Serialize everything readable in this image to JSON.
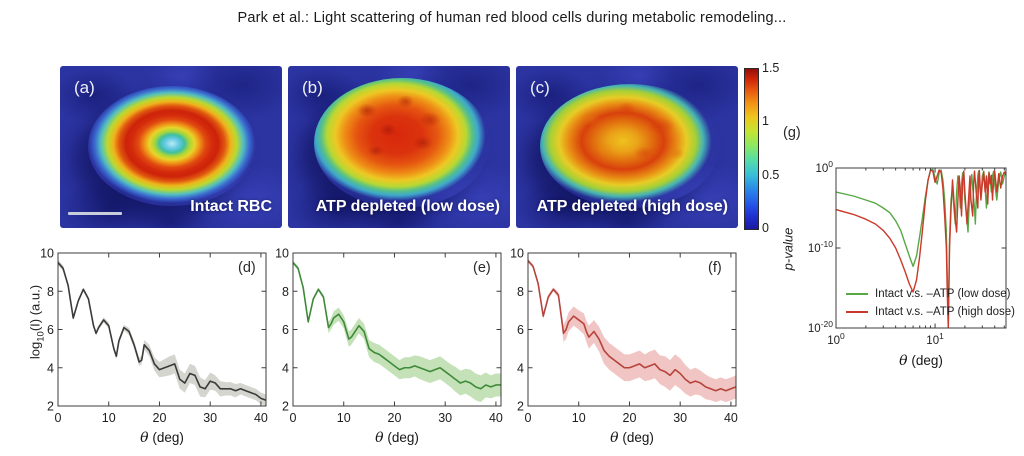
{
  "header": {
    "title": "Park et al.: Light scattering of human red blood cells during metabolic remodeling..."
  },
  "surface_panels": [
    {
      "label": "(a)",
      "caption": "Intact RBC"
    },
    {
      "label": "(b)",
      "caption": "ATP depleted (low dose)"
    },
    {
      "label": "(c)",
      "caption": "ATP depleted (high dose)"
    }
  ],
  "colorbar": {
    "range": [
      0,
      1.5
    ],
    "tick_labels": [
      "1.5",
      "1",
      "0.5",
      "0"
    ],
    "colormap": "jet"
  },
  "chart_data": [
    {
      "id": "d",
      "type": "line",
      "panel_label": "(d)",
      "xlabel_symbol": "θ",
      "xlabel_units": " (deg)",
      "ylabel": "log10(I) (a.u.)",
      "ylabel_parts": [
        "log",
        "10",
        "(I) (a.u.)"
      ],
      "xlim": [
        0,
        41
      ],
      "ylim": [
        2,
        10
      ],
      "xticks": [
        0,
        10,
        20,
        30,
        40
      ],
      "yticks": [
        2,
        4,
        6,
        8,
        10
      ],
      "line_color": "#3a3a38",
      "band_color": "rgba(172,171,162,0.5)",
      "x": [
        0,
        1,
        2,
        3,
        4,
        5,
        6,
        7,
        7.5,
        8,
        9,
        10,
        11,
        11.5,
        12,
        13,
        14,
        15,
        16,
        16.5,
        17,
        18,
        19,
        20,
        21,
        22,
        23,
        24,
        25,
        26,
        27,
        28,
        29,
        30,
        31,
        32,
        33,
        34,
        35,
        36,
        37,
        38,
        39,
        40,
        41
      ],
      "y": [
        9.5,
        9.2,
        8.3,
        6.6,
        7.5,
        8.1,
        7.6,
        6.2,
        5.8,
        6.1,
        6.5,
        6.2,
        5.0,
        4.6,
        5.4,
        6.1,
        5.9,
        5.2,
        4.3,
        4.4,
        5.2,
        4.9,
        4.2,
        3.9,
        4.0,
        4.1,
        4.2,
        3.4,
        3.2,
        3.7,
        3.6,
        3.0,
        2.9,
        3.3,
        3.2,
        2.9,
        2.9,
        2.9,
        2.8,
        2.9,
        2.8,
        2.7,
        2.6,
        2.4,
        2.3
      ],
      "band": [
        0.15,
        0.15,
        0.12,
        0.12,
        0.1,
        0.1,
        0.1,
        0.12,
        0.12,
        0.12,
        0.15,
        0.15,
        0.15,
        0.15,
        0.15,
        0.15,
        0.18,
        0.2,
        0.22,
        0.22,
        0.25,
        0.3,
        0.35,
        0.4,
        0.45,
        0.5,
        0.5,
        0.5,
        0.5,
        0.5,
        0.5,
        0.5,
        0.45,
        0.45,
        0.4,
        0.4,
        0.35,
        0.35,
        0.35,
        0.3,
        0.3,
        0.3,
        0.3,
        0.3,
        0.3
      ]
    },
    {
      "id": "e",
      "type": "line",
      "panel_label": "(e)",
      "xlabel_symbol": "θ",
      "xlabel_units": " (deg)",
      "ylabel": null,
      "xlim": [
        0,
        41
      ],
      "ylim": [
        2,
        10
      ],
      "xticks": [
        0,
        10,
        20,
        30,
        40
      ],
      "yticks": [
        2,
        4,
        6,
        8,
        10
      ],
      "line_color": "#3f8a3a",
      "band_color": "rgba(150,200,125,0.55)",
      "x": [
        0,
        1,
        2,
        3,
        4,
        5,
        6,
        7,
        7.5,
        8,
        9,
        10,
        11,
        11.5,
        12,
        13,
        14,
        15,
        16,
        16.5,
        17,
        18,
        19,
        20,
        21,
        22,
        23,
        24,
        25,
        26,
        27,
        28,
        29,
        30,
        31,
        32,
        33,
        34,
        35,
        36,
        37,
        38,
        39,
        40,
        41
      ],
      "y": [
        9.5,
        9.2,
        8.2,
        6.4,
        7.6,
        8.1,
        7.7,
        6.1,
        6.3,
        6.6,
        6.8,
        6.4,
        5.5,
        5.6,
        5.8,
        6.2,
        5.9,
        5.0,
        4.8,
        4.75,
        4.7,
        4.5,
        4.3,
        4.1,
        3.9,
        4.0,
        4.0,
        4.1,
        4.0,
        3.9,
        3.8,
        3.9,
        4.0,
        3.8,
        3.6,
        3.4,
        3.2,
        3.3,
        3.2,
        3.0,
        2.9,
        3.1,
        3.0,
        3.1,
        3.1
      ],
      "band": [
        0.1,
        0.1,
        0.1,
        0.12,
        0.1,
        0.1,
        0.12,
        0.3,
        0.3,
        0.35,
        0.35,
        0.35,
        0.4,
        0.4,
        0.4,
        0.4,
        0.4,
        0.45,
        0.5,
        0.5,
        0.5,
        0.5,
        0.5,
        0.5,
        0.5,
        0.55,
        0.55,
        0.55,
        0.6,
        0.6,
        0.6,
        0.6,
        0.6,
        0.6,
        0.6,
        0.65,
        0.65,
        0.65,
        0.7,
        0.7,
        0.7,
        0.65,
        0.6,
        0.6,
        0.6
      ]
    },
    {
      "id": "f",
      "type": "line",
      "panel_label": "(f)",
      "xlabel_symbol": "θ",
      "xlabel_units": " (deg)",
      "ylabel": null,
      "xlim": [
        0,
        41
      ],
      "ylim": [
        2,
        10
      ],
      "xticks": [
        0,
        10,
        20,
        30,
        40
      ],
      "yticks": [
        2,
        4,
        6,
        8,
        10
      ],
      "line_color": "#b5443c",
      "band_color": "rgba(230,150,145,0.55)",
      "x": [
        0,
        1,
        2,
        3,
        4,
        5,
        6,
        7,
        7.5,
        8,
        9,
        10,
        11,
        11.5,
        12,
        13,
        14,
        15,
        16,
        16.5,
        17,
        18,
        19,
        20,
        21,
        22,
        23,
        24,
        25,
        26,
        27,
        28,
        29,
        30,
        31,
        32,
        33,
        34,
        35,
        36,
        37,
        38,
        39,
        40,
        41
      ],
      "y": [
        9.6,
        9.3,
        8.4,
        6.7,
        7.7,
        8.1,
        7.8,
        5.8,
        6.0,
        6.4,
        6.7,
        6.5,
        6.3,
        5.9,
        5.6,
        5.9,
        5.5,
        4.9,
        4.6,
        4.5,
        4.4,
        4.2,
        4.0,
        4.0,
        4.1,
        4.2,
        4.0,
        4.1,
        4.2,
        3.9,
        3.8,
        3.6,
        3.9,
        3.7,
        3.4,
        3.2,
        3.3,
        3.2,
        3.0,
        2.9,
        2.8,
        2.9,
        2.8,
        2.9,
        3.0
      ],
      "band": [
        0.1,
        0.1,
        0.1,
        0.15,
        0.12,
        0.1,
        0.15,
        0.45,
        0.5,
        0.5,
        0.5,
        0.5,
        0.55,
        0.55,
        0.6,
        0.6,
        0.65,
        0.7,
        0.7,
        0.7,
        0.7,
        0.7,
        0.7,
        0.7,
        0.7,
        0.7,
        0.7,
        0.75,
        0.75,
        0.75,
        0.8,
        0.8,
        0.8,
        0.8,
        0.75,
        0.7,
        0.7,
        0.65,
        0.65,
        0.6,
        0.6,
        0.6,
        0.6,
        0.6,
        0.6
      ]
    },
    {
      "id": "g",
      "type": "line",
      "xscale": "log",
      "yscale": "log",
      "panel_label": "(g)",
      "xlabel_symbol": "θ",
      "xlabel_units": " (deg)",
      "ylabel": "p-value",
      "xlim_log": [
        1,
        52
      ],
      "ylim_exp": [
        -20,
        0
      ],
      "xticks_log": [
        1,
        10
      ],
      "xminor_log": [
        2,
        3,
        4,
        5,
        6,
        7,
        8,
        9,
        20,
        30,
        40,
        50
      ],
      "yticks_exp": [
        0,
        -10,
        -20
      ],
      "legend_position": "bottom-left",
      "series": [
        {
          "name": "Intact v.s. –ATP (low dose)",
          "color": "#58a845",
          "points": [
            [
              1,
              -3
            ],
            [
              1.5,
              -3.5
            ],
            [
              2,
              -4
            ],
            [
              2.5,
              -4.4
            ],
            [
              3,
              -5
            ],
            [
              3.5,
              -5.6
            ],
            [
              4,
              -6.6
            ],
            [
              4.5,
              -7.8
            ],
            [
              5,
              -9.5
            ],
            [
              5.5,
              -11
            ],
            [
              6,
              -12.3
            ],
            [
              6.5,
              -11
            ],
            [
              7,
              -8.5
            ],
            [
              7.5,
              -6
            ],
            [
              8,
              -3.5
            ],
            [
              8.5,
              -1.5
            ],
            [
              9,
              -0.3
            ],
            [
              9.5,
              -0.15
            ],
            [
              10,
              -1.2
            ],
            [
              10.5,
              -2
            ],
            [
              11,
              -0.6
            ],
            [
              11.5,
              -0.25
            ],
            [
              12,
              -1.5
            ],
            [
              12.5,
              -4
            ],
            [
              13,
              -8
            ],
            [
              13.3,
              -14
            ],
            [
              13.6,
              -19.5
            ],
            [
              14,
              -9
            ],
            [
              14.5,
              -4
            ],
            [
              15,
              -2.5
            ],
            [
              15.5,
              -5
            ],
            [
              16,
              -7
            ],
            [
              16.5,
              -3
            ],
            [
              17,
              -1
            ],
            [
              17.5,
              -2.5
            ],
            [
              18,
              -5
            ],
            [
              18.5,
              -2
            ],
            [
              19,
              -0.6
            ],
            [
              19.5,
              -1.5
            ],
            [
              20,
              -4
            ],
            [
              21,
              -6.5
            ],
            [
              21.5,
              -8
            ],
            [
              22,
              -5
            ],
            [
              23,
              -2
            ],
            [
              23.5,
              -0.8
            ],
            [
              24,
              -2.5
            ],
            [
              25,
              -5
            ],
            [
              25.5,
              -7
            ],
            [
              26,
              -4
            ],
            [
              27,
              -1
            ],
            [
              27.5,
              -0.4
            ],
            [
              28,
              -2
            ],
            [
              29,
              -3.5
            ],
            [
              30,
              -1
            ],
            [
              31,
              -0.4
            ],
            [
              32,
              -2.5
            ],
            [
              33,
              -5
            ],
            [
              34,
              -2
            ],
            [
              35,
              -0.5
            ],
            [
              36,
              -1.5
            ],
            [
              37,
              -3
            ],
            [
              38,
              -1
            ],
            [
              39,
              -0.4
            ],
            [
              40,
              -2
            ],
            [
              42,
              -4
            ],
            [
              44,
              -1.5
            ],
            [
              46,
              -0.5
            ],
            [
              48,
              -2
            ],
            [
              50,
              -1
            ],
            [
              52,
              -0.4
            ]
          ]
        },
        {
          "name": "Intact v.s. –ATP (high dose)",
          "color": "#c93a2b",
          "points": [
            [
              1,
              -5.2
            ],
            [
              1.5,
              -5.8
            ],
            [
              2,
              -6.4
            ],
            [
              2.5,
              -7
            ],
            [
              3,
              -7.8
            ],
            [
              3.5,
              -8.8
            ],
            [
              4,
              -10
            ],
            [
              4.5,
              -11.5
            ],
            [
              5,
              -13
            ],
            [
              5.5,
              -14.5
            ],
            [
              6,
              -15.5
            ],
            [
              6.5,
              -14
            ],
            [
              7,
              -11
            ],
            [
              7.5,
              -7.5
            ],
            [
              8,
              -4
            ],
            [
              8.5,
              -1.5
            ],
            [
              9,
              -0.25
            ],
            [
              9.5,
              -0.4
            ],
            [
              10,
              -1.8
            ],
            [
              10.5,
              -1
            ],
            [
              11,
              -0.25
            ],
            [
              11.5,
              -0.5
            ],
            [
              12,
              -2.5
            ],
            [
              12.5,
              -6
            ],
            [
              13,
              -10
            ],
            [
              13.3,
              -16
            ],
            [
              13.6,
              -20
            ],
            [
              14,
              -10
            ],
            [
              14.5,
              -5
            ],
            [
              15,
              -1.5
            ],
            [
              15.5,
              -4
            ],
            [
              16,
              -6.5
            ],
            [
              16.5,
              -8
            ],
            [
              17,
              -4
            ],
            [
              17.5,
              -1
            ],
            [
              18,
              -3
            ],
            [
              18.5,
              -6
            ],
            [
              19,
              -1.5
            ],
            [
              19.5,
              -0.4
            ],
            [
              20,
              -3
            ],
            [
              21,
              -7
            ],
            [
              22,
              -3
            ],
            [
              22.5,
              -1
            ],
            [
              23,
              -4
            ],
            [
              24,
              -6
            ],
            [
              24.5,
              -2
            ],
            [
              25,
              -0.4
            ],
            [
              26,
              -3
            ],
            [
              27,
              -5
            ],
            [
              27.5,
              -1.5
            ],
            [
              28,
              -0.3
            ],
            [
              29,
              -4
            ],
            [
              30,
              -2
            ],
            [
              31,
              -0.5
            ],
            [
              32,
              -3
            ],
            [
              33,
              -1
            ],
            [
              34,
              -4.5
            ],
            [
              35,
              -0.6
            ],
            [
              36,
              -2
            ],
            [
              37,
              -0.9
            ],
            [
              38,
              -4
            ],
            [
              39,
              -1.5
            ],
            [
              40,
              -0.4
            ],
            [
              42,
              -3
            ],
            [
              44,
              -0.7
            ],
            [
              46,
              -2.5
            ],
            [
              48,
              -1
            ],
            [
              50,
              -0.5
            ],
            [
              52,
              -0.9
            ]
          ]
        }
      ]
    }
  ]
}
